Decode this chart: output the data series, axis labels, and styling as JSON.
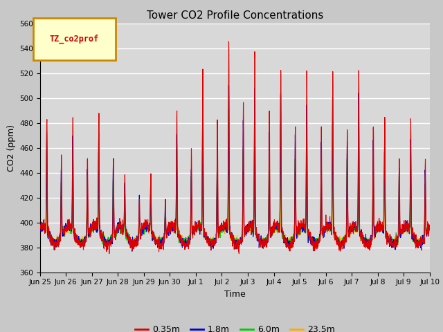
{
  "title": "Tower CO2 Profile Concentrations",
  "xlabel": "Time",
  "ylabel": "CO2 (ppm)",
  "ylim": [
    360,
    560
  ],
  "yticks": [
    360,
    380,
    400,
    420,
    440,
    460,
    480,
    500,
    520,
    540,
    560
  ],
  "legend_label": "TZ_co2prof",
  "series_labels": [
    "0.35m",
    "1.8m",
    "6.0m",
    "23.5m"
  ],
  "series_colors": [
    "#dd0000",
    "#0000cc",
    "#00cc00",
    "#ffaa00"
  ],
  "background_color": "#d8d8d8",
  "tick_labels": [
    "Jun 25",
    "Jun 26",
    "Jun 27",
    "Jun 28",
    "Jun 29",
    "Jun 30",
    "Jul 1",
    "Jul 2",
    "Jul 3",
    "Jul 4",
    "Jul 5",
    "Jul 6",
    "Jul 7",
    "Jul 8",
    "Jul 9",
    "Jul 10"
  ],
  "n_days": 15,
  "pts_per_day": 144
}
